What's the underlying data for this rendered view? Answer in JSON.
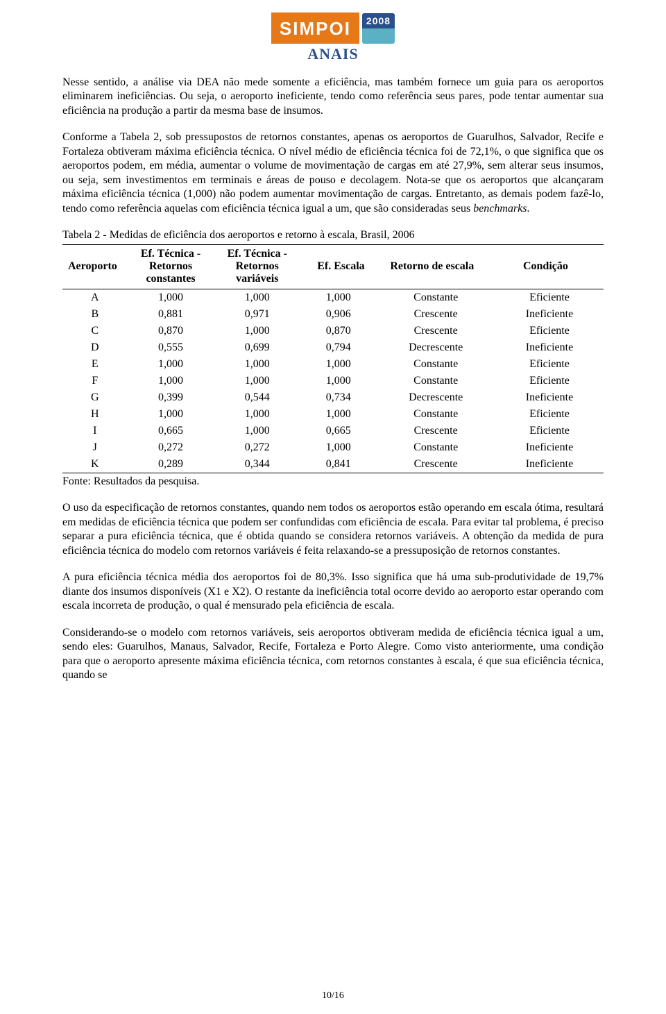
{
  "logo": {
    "word": "SIMPOI",
    "year": "2008",
    "subtitle": "ANAIS"
  },
  "paragraphs": {
    "p1": "Nesse sentido, a análise via DEA não mede somente a eficiência, mas também fornece um guia para os aeroportos eliminarem ineficiências. Ou seja, o aeroporto ineficiente, tendo como referência seus pares, pode tentar aumentar sua eficiência na produção a partir da mesma base de insumos.",
    "p2a": "Conforme a Tabela 2, sob pressupostos de retornos constantes, apenas os aeroportos de Guarulhos, Salvador, Recife e Fortaleza obtiveram máxima eficiência técnica. O nível médio de eficiência técnica foi de 72,1%, o que significa que os aeroportos podem, em média, aumentar o volume de movimentação de cargas em até 27,9%, sem alterar seus insumos, ou seja, sem investimentos em terminais e áreas de pouso e decolagem. Nota-se que os aeroportos que alcançaram máxima eficiência técnica (1,000) não podem aumentar movimentação de cargas. Entretanto, as demais podem fazê-lo, tendo como referência aquelas com eficiência técnica igual a um, que são consideradas seus ",
    "p2b": "benchmarks",
    "p2c": ".",
    "p3": "O uso da especificação de retornos constantes, quando nem todos os aeroportos estão operando em escala ótima, resultará em medidas de eficiência técnica que podem ser confundidas com eficiência de escala. Para evitar tal problema, é preciso separar a pura eficiência técnica, que é obtida quando se considera retornos variáveis. A obtenção da medida de pura eficiência técnica do modelo com retornos variáveis é feita relaxando-se a pressuposição de retornos constantes.",
    "p4": "A pura eficiência técnica média dos aeroportos foi de 80,3%. Isso significa que há uma sub-produtividade de 19,7% diante dos insumos disponíveis (X1 e X2). O restante da ineficiência total ocorre devido ao aeroporto estar operando com escala incorreta de produção, o qual é mensurado pela eficiência de escala.",
    "p5": "Considerando-se o modelo com retornos variáveis, seis aeroportos obtiveram medida de eficiência técnica igual a um, sendo eles: Guarulhos, Manaus, Salvador, Recife, Fortaleza e Porto Alegre. Como visto anteriormente, uma condição para que o aeroporto apresente máxima eficiência técnica, com retornos constantes à escala, é que sua eficiência técnica, quando se"
  },
  "table": {
    "caption": "Tabela 2 - Medidas de eficiência dos aeroportos e retorno à escala, Brasil, 2006",
    "header": {
      "c1": "Aeroporto",
      "c2": "Ef. Técnica -\nRetornos\nconstantes",
      "c3": "Ef. Técnica -\nRetornos\nvariáveis",
      "c4": "Ef. Escala",
      "c5": "Retorno de escala",
      "c6": "Condição"
    },
    "rows": [
      [
        "A",
        "1,000",
        "1,000",
        "1,000",
        "Constante",
        "Eficiente"
      ],
      [
        "B",
        "0,881",
        "0,971",
        "0,906",
        "Crescente",
        "Ineficiente"
      ],
      [
        "C",
        "0,870",
        "1,000",
        "0,870",
        "Crescente",
        "Eficiente"
      ],
      [
        "D",
        "0,555",
        "0,699",
        "0,794",
        "Decrescente",
        "Ineficiente"
      ],
      [
        "E",
        "1,000",
        "1,000",
        "1,000",
        "Constante",
        "Eficiente"
      ],
      [
        "F",
        "1,000",
        "1,000",
        "1,000",
        "Constante",
        "Eficiente"
      ],
      [
        "G",
        "0,399",
        "0,544",
        "0,734",
        "Decrescente",
        "Ineficiente"
      ],
      [
        "H",
        "1,000",
        "1,000",
        "1,000",
        "Constante",
        "Eficiente"
      ],
      [
        "I",
        "0,665",
        "1,000",
        "0,665",
        "Crescente",
        "Eficiente"
      ],
      [
        "J",
        "0,272",
        "0,272",
        "1,000",
        "Constante",
        "Ineficiente"
      ],
      [
        "K",
        "0,289",
        "0,344",
        "0,841",
        "Crescente",
        "Ineficiente"
      ]
    ],
    "source": "Fonte: Resultados da pesquisa."
  },
  "pageNumber": "10/16"
}
